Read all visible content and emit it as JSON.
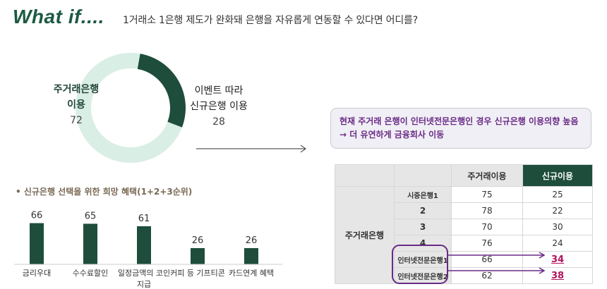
{
  "header": {
    "title": "What if....",
    "subtitle": "1거래소 1은행 제도가 완화돼 은행을 자유롭게 연동할 수 있다면 어디를?"
  },
  "donut": {
    "left_label_line1": "주거래은행",
    "left_label_line2": "이용",
    "left_value": "72",
    "right_label_line1": "이벤트 따라",
    "right_label_line2": "신규은행 이용",
    "right_value": "28",
    "colors": {
      "main": "#1e4d3b",
      "light": "#d9eee5"
    }
  },
  "callout": {
    "line1": "현재 주거래 은행이 인터넷전문은행인 경우 신규은행 이용의향 높음",
    "line2": "→ 더 유연하게 금융회사 이동"
  },
  "bar_section": {
    "title": "• 신규은행 선택을 위한 희망 혜택(1+2+3순위)"
  },
  "chart_data": [
    {
      "type": "pie",
      "categories": [
        "주거래은행 이용",
        "이벤트 따라 신규은행 이용"
      ],
      "values": [
        72,
        28
      ]
    },
    {
      "type": "bar",
      "title": "• 신규은행 선택을 위한 희망 혜택(1+2+3순위)",
      "categories": [
        "금리우대",
        "수수료할인",
        "일정금액의 코인 지급",
        "커피 등 기프티콘",
        "카드연계 혜택"
      ],
      "values": [
        66,
        65,
        61,
        26,
        26
      ],
      "color": "#1e4d3b"
    }
  ],
  "table": {
    "headers": [
      "",
      "",
      "주거래이용",
      "신규이용"
    ],
    "group_label": "주거래은행",
    "rows": [
      {
        "label": "시중은행1",
        "cur": "75",
        "new": "25"
      },
      {
        "label": "2",
        "cur": "78",
        "new": "22"
      },
      {
        "label": "3",
        "cur": "70",
        "new": "30"
      },
      {
        "label": "4",
        "cur": "76",
        "new": "24"
      },
      {
        "label": "인터넷전문은행1",
        "cur": "66",
        "new": "34"
      },
      {
        "label": "인터넷전문은행2",
        "cur": "62",
        "new": "38"
      }
    ],
    "highlight_color": "#6a2a86",
    "value_highlight_color": "#b2125d"
  }
}
